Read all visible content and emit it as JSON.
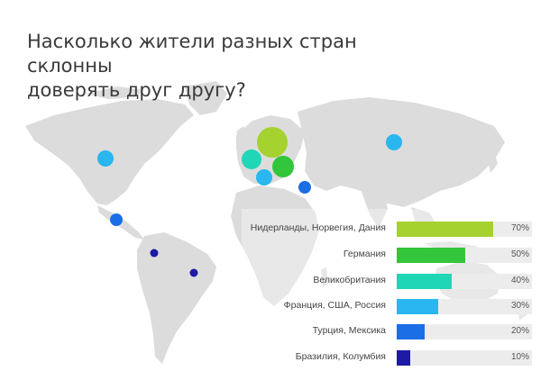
{
  "title_lines": [
    "Насколько жители разных стран склонны",
    "доверять друг другу?"
  ],
  "colors": {
    "map_land": "#dcdcdc",
    "bar_track": "#ececec",
    "lime": "#a5d22f",
    "green": "#33c53a",
    "teal": "#1fd6b6",
    "sky": "#2ab6ee",
    "blue": "#1c6ee6",
    "navy": "#1d1aa6"
  },
  "chart_data": {
    "type": "bar",
    "orientation": "horizontal",
    "categories": [
      "Нидерланды, Норвегия, Дания",
      "Германия",
      "Великобритания",
      "Франция, США, Россия",
      "Турция, Мексика",
      "Бразилия, Колумбия"
    ],
    "values": [
      70,
      50,
      40,
      30,
      20,
      10
    ],
    "value_labels": [
      "70%",
      "50%",
      "40%",
      "30%",
      "20%",
      "10%"
    ],
    "bar_colors": [
      "#a5d22f",
      "#33c53a",
      "#1fd6b6",
      "#2ab6ee",
      "#1c6ee6",
      "#1d1aa6"
    ],
    "xlim": [
      0,
      100
    ],
    "grid": false,
    "legend": "none"
  },
  "map_bubbles": [
    {
      "country": "Нидерланды, Норвегия, Дания",
      "value": 70,
      "color": "#a5d22f"
    },
    {
      "country": "Германия",
      "value": 50,
      "color": "#33c53a"
    },
    {
      "country": "Великобритания",
      "value": 40,
      "color": "#1fd6b6"
    },
    {
      "country": "Франция",
      "value": 30,
      "color": "#2ab6ee"
    },
    {
      "country": "США",
      "value": 30,
      "color": "#2ab6ee"
    },
    {
      "country": "Россия",
      "value": 30,
      "color": "#2ab6ee"
    },
    {
      "country": "Турция",
      "value": 20,
      "color": "#1c6ee6"
    },
    {
      "country": "Мексика",
      "value": 20,
      "color": "#1c6ee6"
    },
    {
      "country": "Колумбия",
      "value": 10,
      "color": "#1d1aa6"
    },
    {
      "country": "Бразилия",
      "value": 10,
      "color": "#1d1aa6"
    }
  ]
}
